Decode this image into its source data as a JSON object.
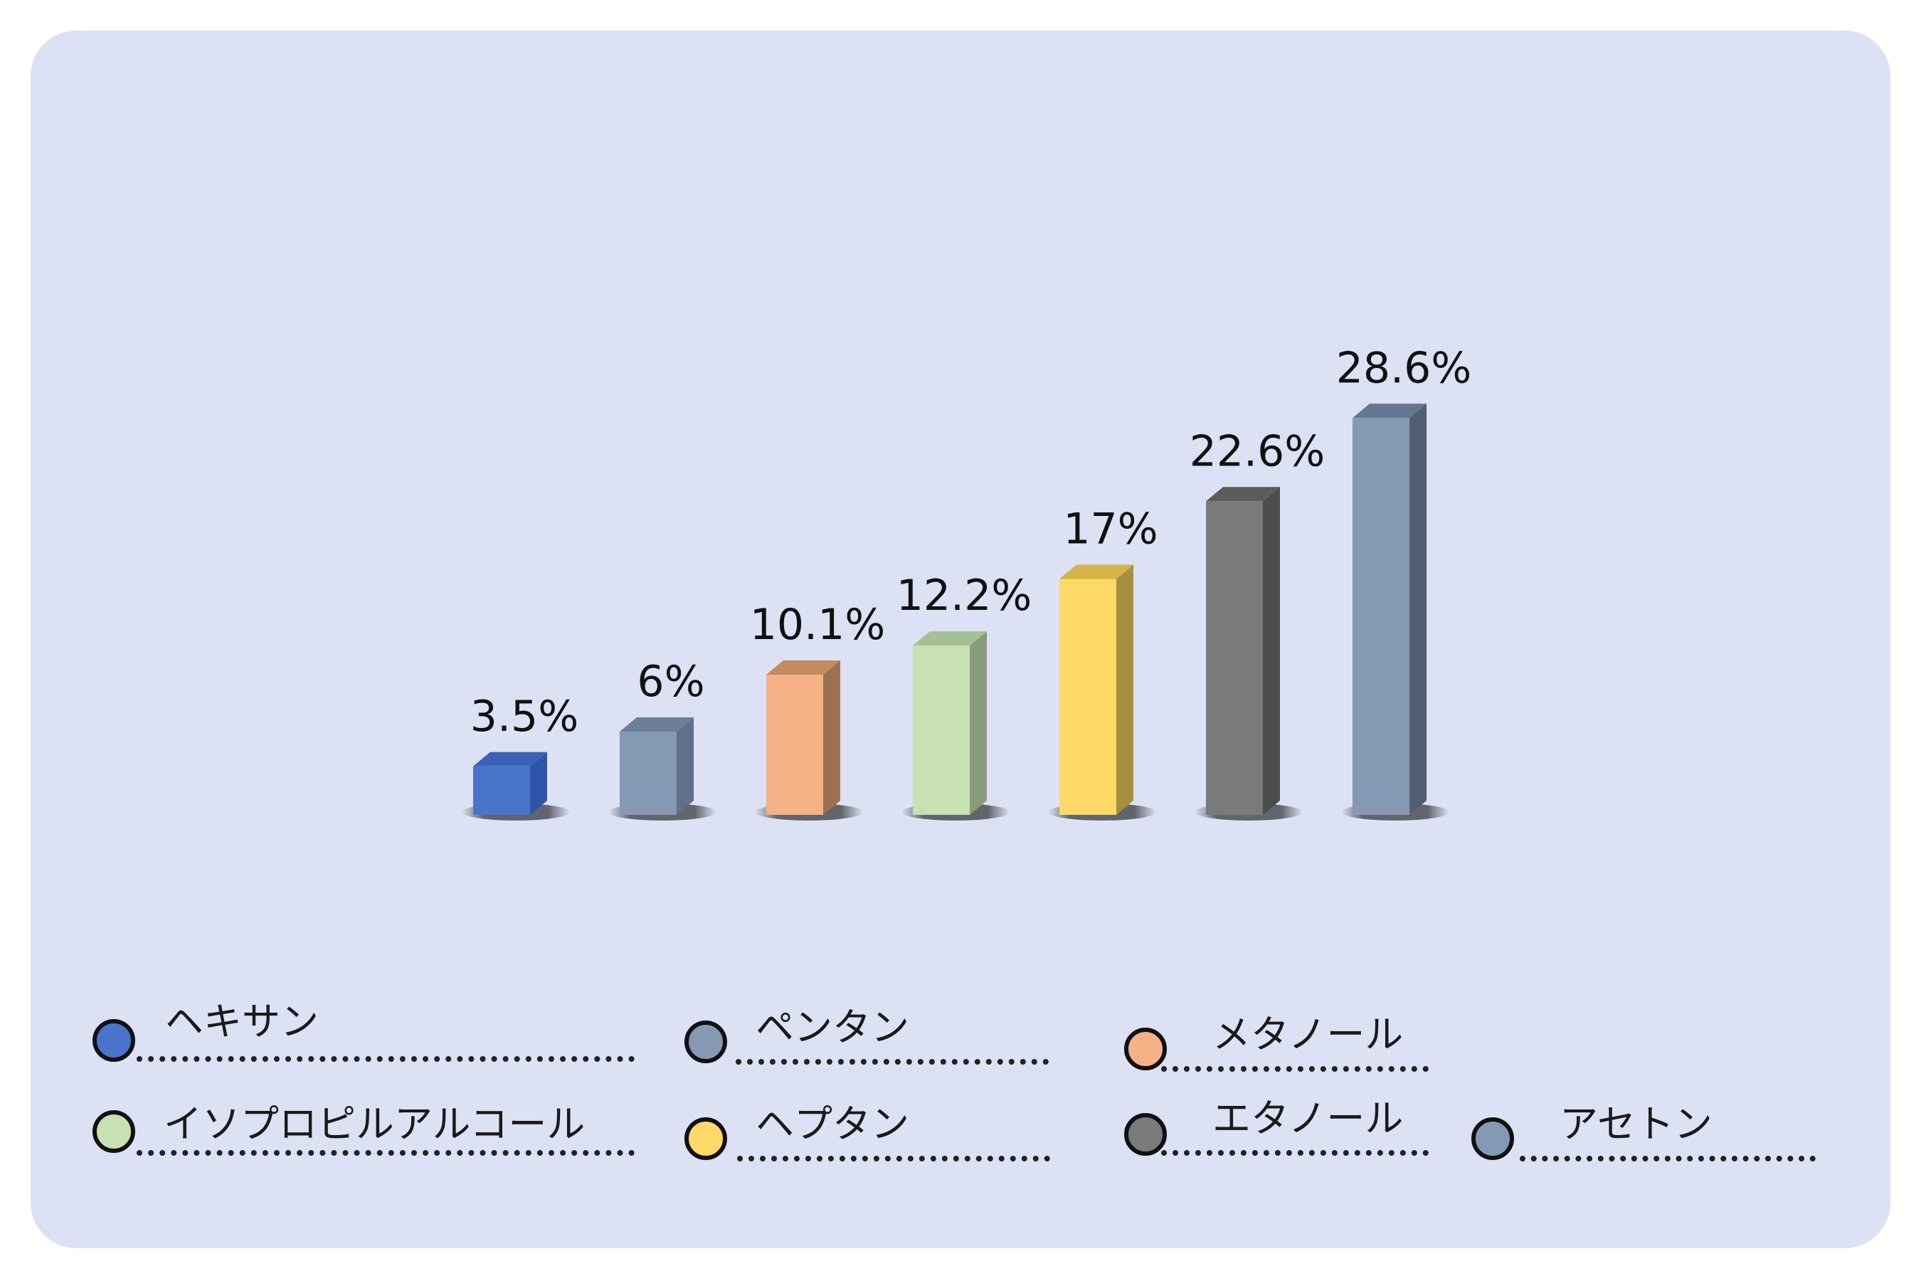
{
  "chart_data": {
    "type": "bar",
    "categories": [
      "ヘキサン",
      "ペンタン",
      "メタノール",
      "イソプロピルアルコール",
      "ヘプタン",
      "エタノール",
      "アセトン"
    ],
    "values": [
      3.5,
      6,
      10.1,
      12.2,
      17,
      22.6,
      28.6
    ],
    "value_labels": [
      "3.5%",
      "6%",
      "10.1%",
      "12.2%",
      "17%",
      "22.6%",
      "28.6%"
    ],
    "colors": [
      "#4a74cc",
      "#8598b4",
      "#f4b286",
      "#c7e1b3",
      "#fed967",
      "#7a7a7a",
      "#8598b4"
    ],
    "side_colors": [
      "#2e55a8",
      "#5f7088",
      "#9c7152",
      "#899c79",
      "#a88f3f",
      "#4c4c4c",
      "#525e72"
    ],
    "top_colors": [
      "#3a63b8",
      "#6c7e98",
      "#c48a62",
      "#a6bf94",
      "#d6b44a",
      "#5c5c5c",
      "#667590"
    ],
    "ylim": [
      0,
      30
    ],
    "grid": false,
    "legend_position": "bottom",
    "title": "",
    "xlabel": "",
    "ylabel": ""
  },
  "legend": [
    {
      "label": "ヘキサン",
      "color": "#4a74cc"
    },
    {
      "label": "ペンタン",
      "color": "#8598b4"
    },
    {
      "label": "メタノール",
      "color": "#f4b286"
    },
    {
      "label": "イソプロピルアルコール",
      "color": "#c7e1b3"
    },
    {
      "label": "ヘプタン",
      "color": "#fed967"
    },
    {
      "label": "エタノール",
      "color": "#7a7a7a"
    },
    {
      "label": "アセトン",
      "color": "#8598b4"
    }
  ]
}
